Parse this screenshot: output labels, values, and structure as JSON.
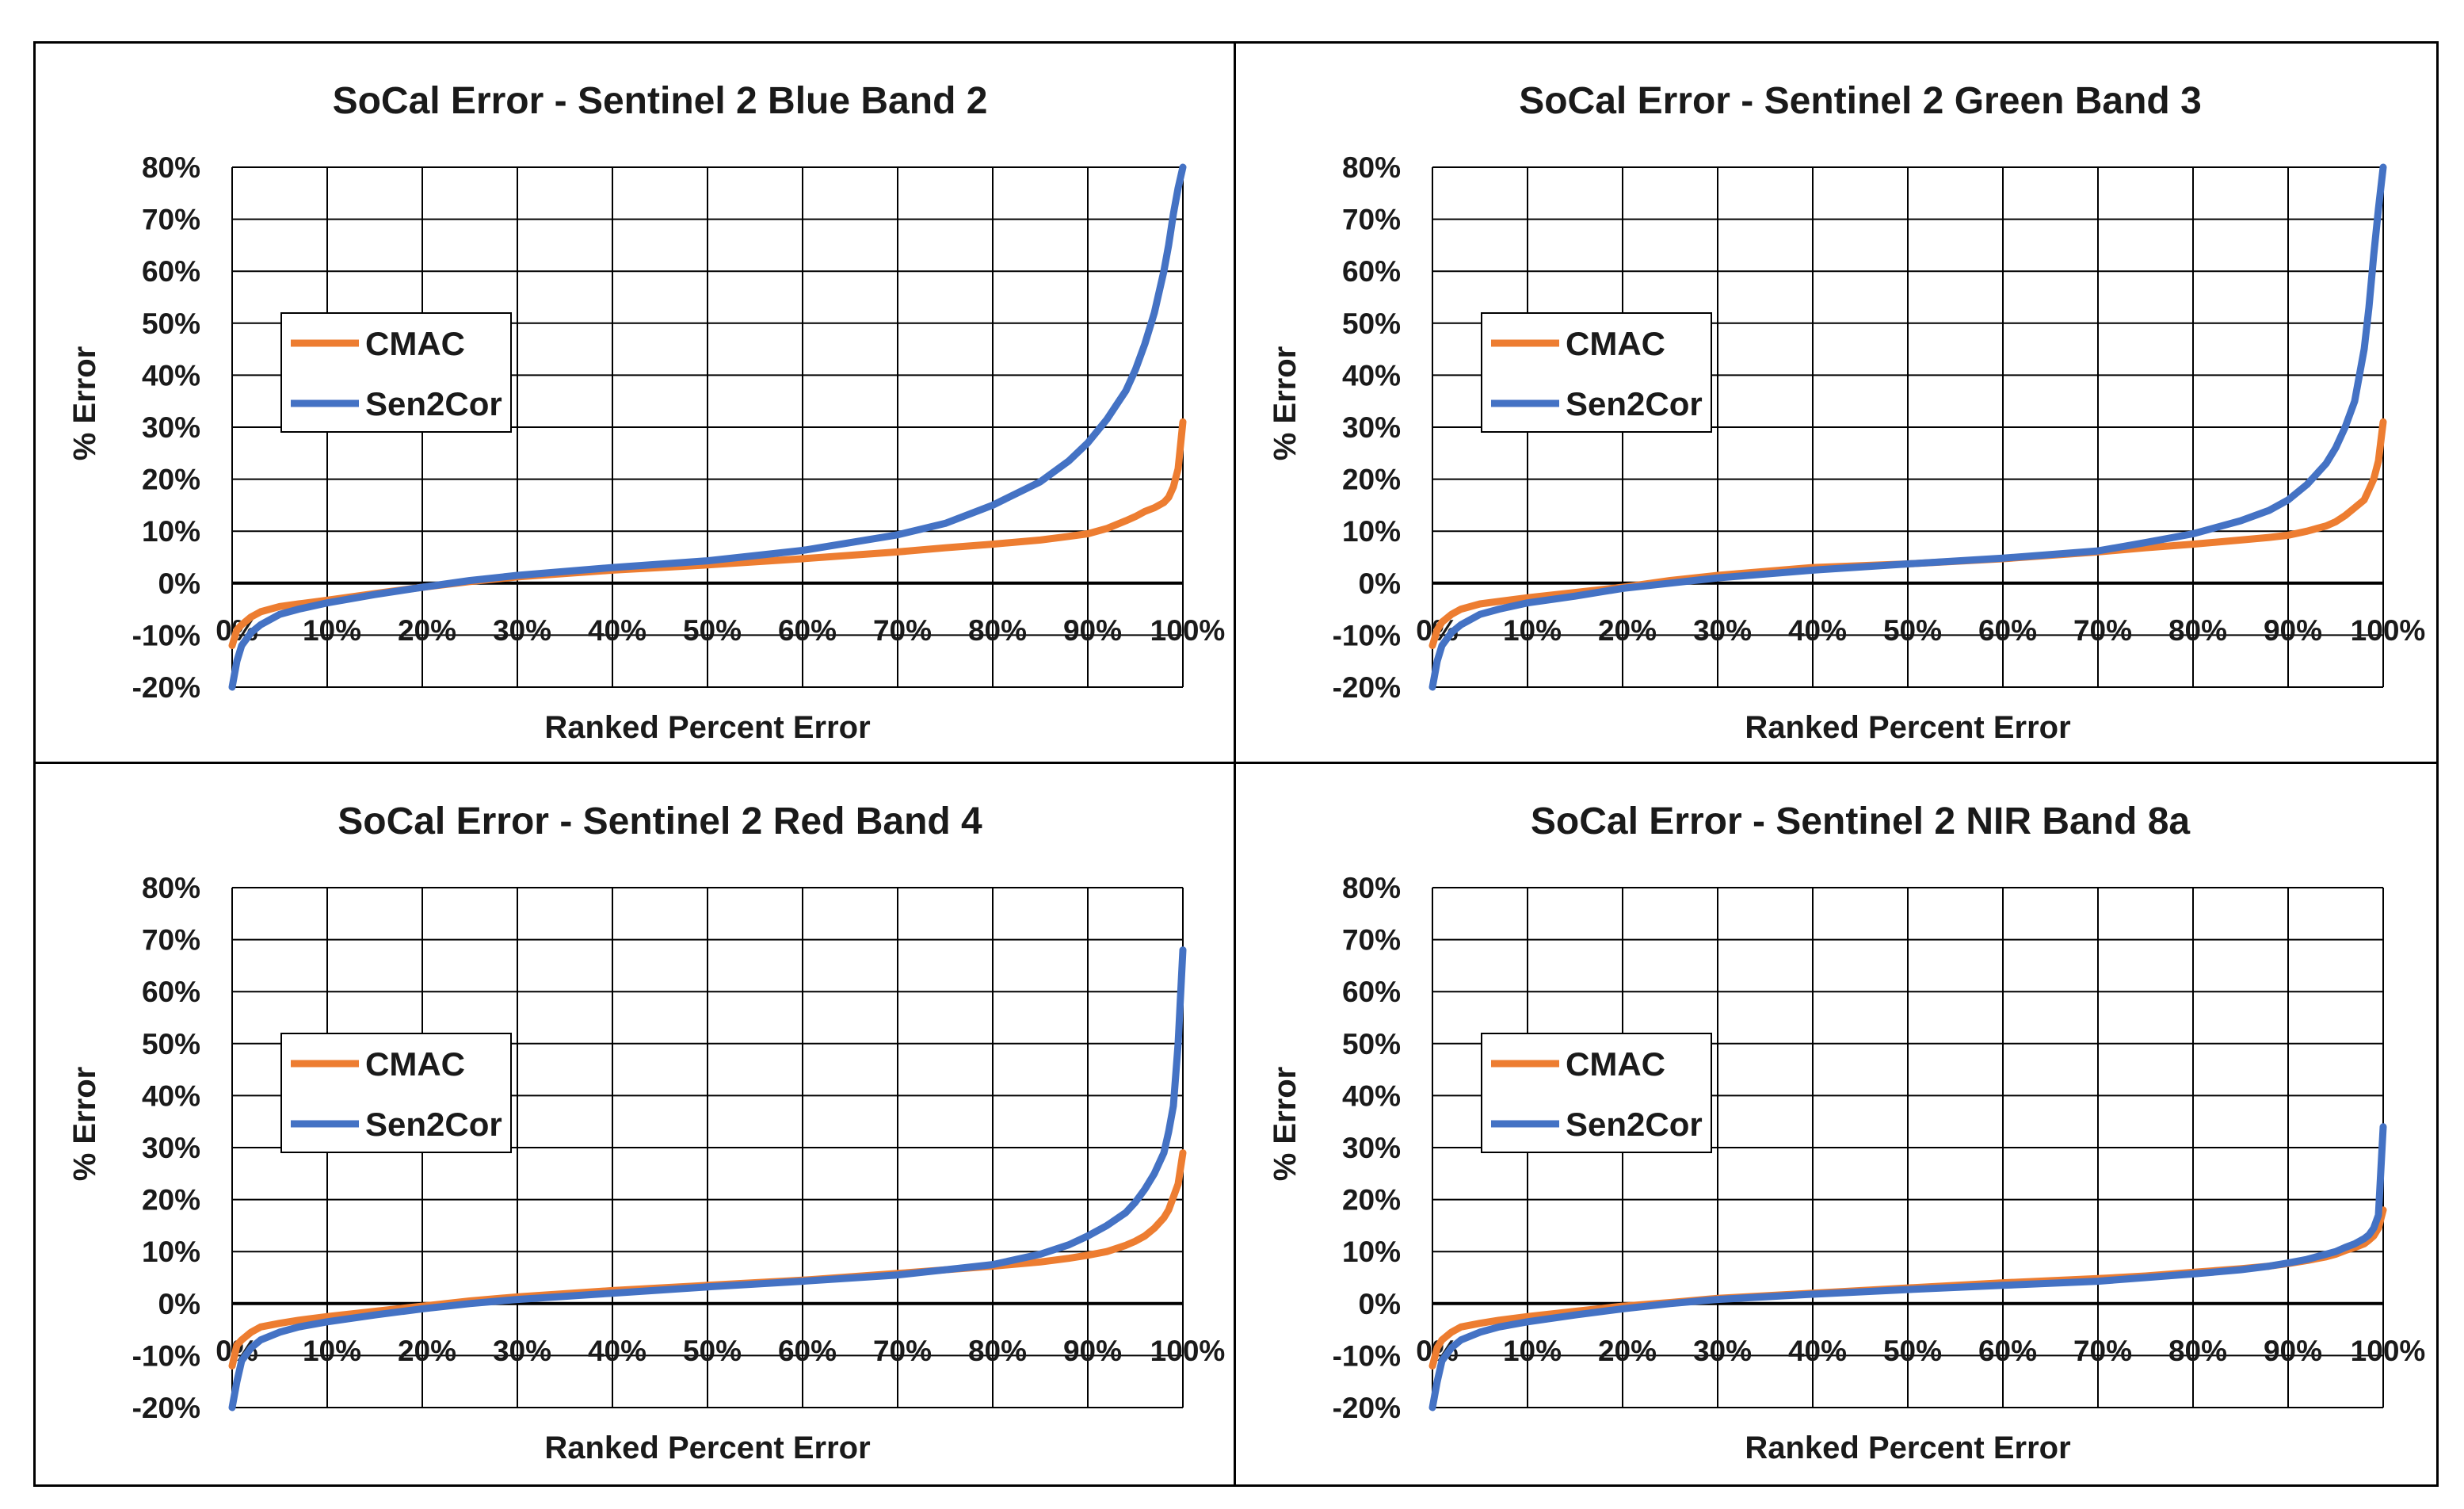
{
  "chart_data": [
    {
      "type": "line",
      "title": "SoCal Error - Sentinel 2 Blue Band 2",
      "xlabel": "Ranked Percent Error",
      "ylabel": "% Error",
      "xlim": [
        0,
        100
      ],
      "ylim": [
        -20,
        80
      ],
      "xticks": [
        "0%",
        "10%",
        "20%",
        "30%",
        "40%",
        "50%",
        "60%",
        "70%",
        "80%",
        "90%",
        "100%"
      ],
      "yticks": [
        "80%",
        "70%",
        "60%",
        "50%",
        "40%",
        "30%",
        "20%",
        "10%",
        "0%",
        "-10%",
        "-20%"
      ],
      "grid": true,
      "legend": "upper-left",
      "x": [
        0,
        0.5,
        1,
        2,
        3,
        5,
        7,
        10,
        15,
        20,
        25,
        30,
        40,
        50,
        60,
        70,
        75,
        80,
        85,
        88,
        90,
        92,
        94,
        95,
        96,
        97,
        98,
        98.5,
        99,
        99.5,
        100
      ],
      "series": [
        {
          "name": "CMAC",
          "color": "#ED7D31",
          "values": [
            -12,
            -9,
            -8,
            -6.5,
            -5.5,
            -4.5,
            -4,
            -3.3,
            -2,
            -0.8,
            0.3,
            1.2,
            2.5,
            3.5,
            4.7,
            6,
            6.8,
            7.5,
            8.3,
            9,
            9.5,
            10.5,
            12,
            12.8,
            13.8,
            14.5,
            15.5,
            16.5,
            18.5,
            22,
            31
          ]
        },
        {
          "name": "Sen2Cor",
          "color": "#4472C4",
          "values": [
            -20,
            -15,
            -12,
            -9.5,
            -8,
            -6,
            -5,
            -3.8,
            -2.2,
            -0.8,
            0.5,
            1.5,
            3,
            4.3,
            6.3,
            9.3,
            11.5,
            15,
            19.5,
            23.5,
            27,
            31.5,
            37,
            41,
            46,
            52,
            60,
            65,
            71,
            76,
            80
          ]
        }
      ]
    },
    {
      "type": "line",
      "title": "SoCal Error - Sentinel 2 Green Band 3",
      "xlabel": "Ranked Percent Error",
      "ylabel": "% Error",
      "xlim": [
        0,
        100
      ],
      "ylim": [
        -20,
        80
      ],
      "xticks": [
        "0%",
        "10%",
        "20%",
        "30%",
        "40%",
        "50%",
        "60%",
        "70%",
        "80%",
        "90%",
        "100%"
      ],
      "yticks": [
        "80%",
        "70%",
        "60%",
        "50%",
        "40%",
        "30%",
        "20%",
        "10%",
        "0%",
        "-10%",
        "-20%"
      ],
      "grid": true,
      "legend": "upper-left",
      "x": [
        0,
        0.5,
        1,
        2,
        3,
        5,
        7,
        10,
        15,
        20,
        25,
        30,
        40,
        50,
        60,
        70,
        75,
        80,
        85,
        88,
        90,
        92,
        94,
        95,
        96,
        97,
        98,
        98.5,
        99,
        99.5,
        100
      ],
      "series": [
        {
          "name": "CMAC",
          "color": "#ED7D31",
          "values": [
            -12,
            -9,
            -7.5,
            -6,
            -5,
            -4,
            -3.5,
            -2.8,
            -1.8,
            -0.8,
            0.5,
            1.5,
            3,
            3.7,
            4.7,
            6,
            6.8,
            7.5,
            8.3,
            8.8,
            9.2,
            10,
            11,
            11.8,
            13,
            14.5,
            16,
            18,
            20,
            23.5,
            31
          ]
        },
        {
          "name": "Sen2Cor",
          "color": "#4472C4",
          "values": [
            -20,
            -15,
            -12,
            -9.5,
            -8,
            -6,
            -5,
            -3.8,
            -2.5,
            -1,
            0,
            1,
            2.5,
            3.7,
            4.8,
            6.2,
            7.8,
            9.5,
            12,
            14,
            16,
            19,
            23,
            26,
            30,
            35,
            45,
            53,
            63,
            72,
            80
          ]
        }
      ]
    },
    {
      "type": "line",
      "title": "SoCal Error - Sentinel 2 Red Band 4",
      "xlabel": "Ranked Percent Error",
      "ylabel": "% Error",
      "xlim": [
        0,
        100
      ],
      "ylim": [
        -20,
        80
      ],
      "xticks": [
        "0%",
        "10%",
        "20%",
        "30%",
        "40%",
        "50%",
        "60%",
        "70%",
        "80%",
        "90%",
        "100%"
      ],
      "yticks": [
        "80%",
        "70%",
        "60%",
        "50%",
        "40%",
        "30%",
        "20%",
        "10%",
        "0%",
        "-10%",
        "-20%"
      ],
      "grid": true,
      "legend": "upper-left",
      "x": [
        0,
        0.5,
        1,
        2,
        3,
        5,
        7,
        10,
        15,
        20,
        25,
        30,
        40,
        50,
        60,
        70,
        75,
        80,
        85,
        88,
        90,
        92,
        94,
        95,
        96,
        97,
        98,
        98.5,
        99,
        99.5,
        100
      ],
      "series": [
        {
          "name": "CMAC",
          "color": "#ED7D31",
          "values": [
            -12,
            -8,
            -7,
            -5.5,
            -4.5,
            -3.8,
            -3.2,
            -2.5,
            -1.5,
            -0.5,
            0.5,
            1.3,
            2.5,
            3.5,
            4.5,
            5.8,
            6.5,
            7.2,
            8,
            8.7,
            9.3,
            10,
            11.2,
            12,
            13,
            14.5,
            16.5,
            18,
            20.5,
            23,
            29
          ]
        },
        {
          "name": "Sen2Cor",
          "color": "#4472C4",
          "values": [
            -20,
            -15,
            -11,
            -8.5,
            -7,
            -5.5,
            -4.5,
            -3.5,
            -2.2,
            -1,
            0,
            0.8,
            2,
            3.2,
            4.3,
            5.5,
            6.5,
            7.5,
            9.5,
            11.3,
            13,
            15,
            17.5,
            19.5,
            22,
            25,
            29,
            33,
            38,
            50,
            68
          ]
        }
      ]
    },
    {
      "type": "line",
      "title": "SoCal Error - Sentinel 2 NIR Band 8a",
      "xlabel": "Ranked Percent Error",
      "ylabel": "% Error",
      "xlim": [
        0,
        100
      ],
      "ylim": [
        -20,
        80
      ],
      "xticks": [
        "0%",
        "10%",
        "20%",
        "30%",
        "40%",
        "50%",
        "60%",
        "70%",
        "80%",
        "90%",
        "100%"
      ],
      "yticks": [
        "80%",
        "70%",
        "60%",
        "50%",
        "40%",
        "30%",
        "20%",
        "10%",
        "0%",
        "-10%",
        "-20%"
      ],
      "grid": true,
      "legend": "upper-left",
      "x": [
        0,
        0.5,
        1,
        2,
        3,
        5,
        7,
        10,
        15,
        20,
        25,
        30,
        40,
        50,
        60,
        70,
        75,
        80,
        85,
        88,
        90,
        92,
        94,
        95,
        96,
        97,
        98,
        98.5,
        99,
        99.5,
        100
      ],
      "series": [
        {
          "name": "CMAC",
          "color": "#ED7D31",
          "values": [
            -12,
            -8.5,
            -7,
            -5.5,
            -4.5,
            -3.8,
            -3.2,
            -2.5,
            -1.5,
            -0.5,
            0.2,
            1,
            2,
            3,
            4,
            4.8,
            5.3,
            6,
            6.7,
            7.2,
            7.7,
            8.3,
            9,
            9.5,
            10.2,
            10.8,
            11.5,
            12.2,
            13,
            14.5,
            18
          ]
        },
        {
          "name": "Sen2Cor",
          "color": "#4472C4",
          "values": [
            -20,
            -15,
            -11,
            -8.5,
            -7,
            -5.5,
            -4.5,
            -3.5,
            -2.2,
            -1,
            0,
            0.8,
            1.8,
            2.7,
            3.5,
            4.3,
            5,
            5.7,
            6.5,
            7.2,
            7.8,
            8.5,
            9.5,
            10,
            10.8,
            11.5,
            12.5,
            13.2,
            14.5,
            17,
            34
          ]
        }
      ]
    }
  ]
}
